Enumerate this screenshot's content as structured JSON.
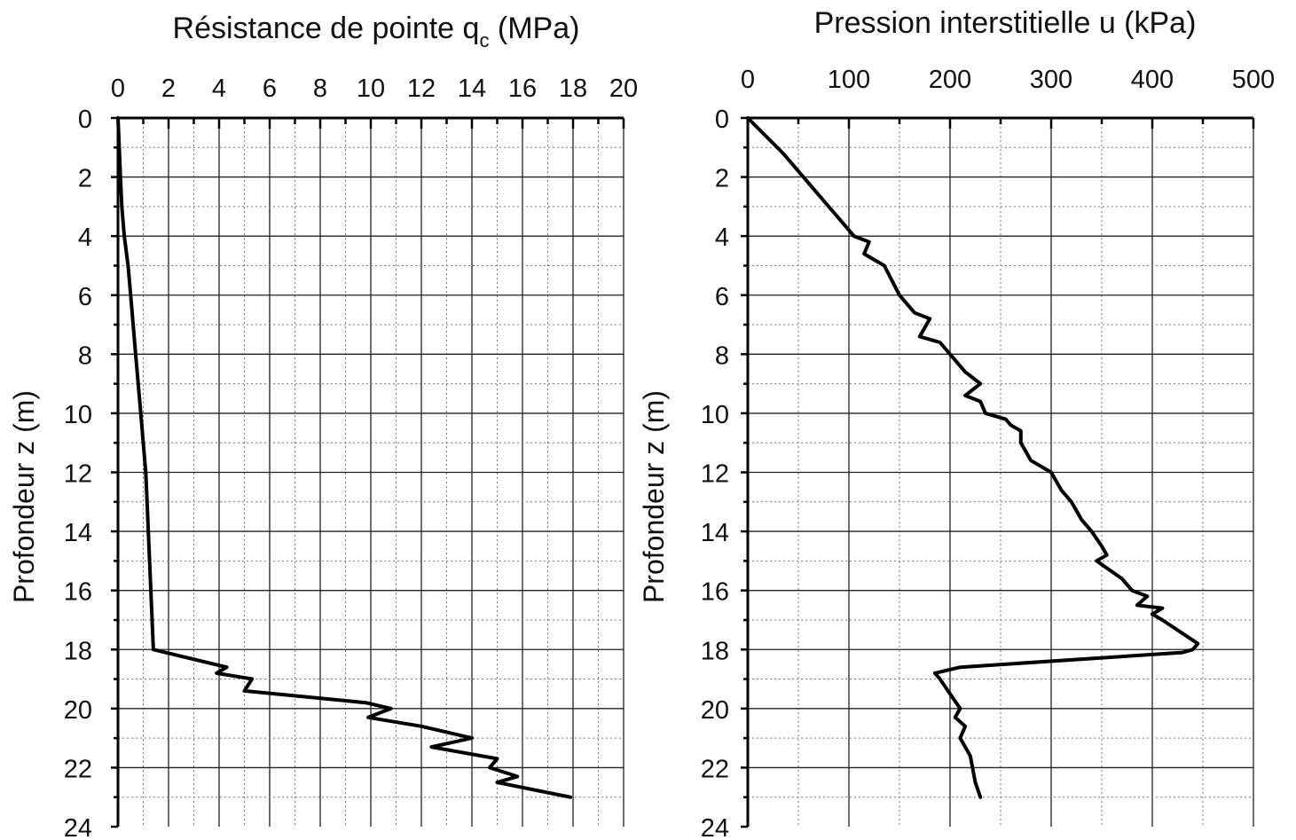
{
  "chart_data": [
    {
      "type": "line",
      "title": "Résistance de pointe q",
      "title_sub": "c",
      "title_unit": " (MPa)",
      "xlabel": "Résistance de pointe q_c (MPa)",
      "ylabel": "Profondeur z (m)",
      "xlim": [
        0,
        20
      ],
      "ylim": [
        0,
        24
      ],
      "y_inverted": true,
      "x_axis_position": "top",
      "grid": true,
      "xticks": [
        0,
        2,
        4,
        6,
        8,
        10,
        12,
        14,
        16,
        18,
        20
      ],
      "yticks": [
        0,
        2,
        4,
        6,
        8,
        10,
        12,
        14,
        16,
        18,
        20,
        22,
        24
      ],
      "xtick_labels": [
        "0",
        "2",
        "4",
        "6",
        "8",
        "10",
        "12",
        "14",
        "16",
        "18",
        "20"
      ],
      "ytick_labels": [
        "0",
        "2",
        "4",
        "6",
        "8",
        "10",
        "12",
        "14",
        "16",
        "18",
        "20",
        "22",
        "24"
      ],
      "series": [
        {
          "x": [
            0,
            0.1,
            0.15,
            0.25,
            0.4,
            0.5,
            0.6,
            0.7,
            0.8,
            0.9,
            1.0,
            1.1,
            1.15,
            1.2,
            1.4,
            4.3,
            3.9,
            5.3,
            5.0,
            9.8,
            10.8,
            9.9,
            12.0,
            14.0,
            12.4,
            15.0,
            14.7,
            15.8,
            15.0,
            17.9
          ],
          "y": [
            0,
            2,
            3,
            4,
            5,
            6,
            7,
            8,
            9,
            10,
            11,
            12,
            13,
            14,
            18,
            18.6,
            18.8,
            19.0,
            19.4,
            19.8,
            20.0,
            20.3,
            20.6,
            21.0,
            21.3,
            21.7,
            22.0,
            22.3,
            22.5,
            23.0
          ]
        }
      ]
    },
    {
      "type": "line",
      "title": "Pression interstitielle u",
      "title_unit": " (kPa)",
      "xlabel": "Pression interstitielle u (kPa)",
      "ylabel": "Profondeur z (m)",
      "xlim": [
        0,
        500
      ],
      "ylim": [
        0,
        24
      ],
      "y_inverted": true,
      "x_axis_position": "top",
      "grid": true,
      "xticks": [
        0,
        100,
        200,
        300,
        400,
        500
      ],
      "yticks": [
        0,
        2,
        4,
        6,
        8,
        10,
        12,
        14,
        16,
        18,
        20,
        22,
        24
      ],
      "xtick_labels": [
        "0",
        "100",
        "200",
        "300",
        "400",
        "500"
      ],
      "ytick_labels": [
        "0",
        "2",
        "4",
        "6",
        "8",
        "10",
        "12",
        "14",
        "16",
        "18",
        "20",
        "22",
        "24"
      ],
      "series": [
        {
          "x": [
            0,
            35,
            45,
            65,
            85,
            95,
            105,
            120,
            115,
            135,
            150,
            165,
            180,
            170,
            190,
            200,
            215,
            230,
            215,
            230,
            235,
            255,
            260,
            270,
            270,
            280,
            300,
            310,
            320,
            330,
            340,
            350,
            355,
            345,
            370,
            380,
            395,
            385,
            410,
            400,
            410,
            445,
            440,
            430,
            210,
            185,
            190,
            200,
            210,
            205,
            215,
            210,
            220,
            225,
            230
          ],
          "y": [
            0,
            1.2,
            1.6,
            2.4,
            3.2,
            3.6,
            4.0,
            4.2,
            4.6,
            5.0,
            6.0,
            6.6,
            6.8,
            7.4,
            7.6,
            8.0,
            8.6,
            9.0,
            9.4,
            9.6,
            10.0,
            10.2,
            10.4,
            10.6,
            11.0,
            11.6,
            12.0,
            12.6,
            13.0,
            13.6,
            14.0,
            14.5,
            14.8,
            15.0,
            15.6,
            16.0,
            16.2,
            16.5,
            16.6,
            16.8,
            17.0,
            17.8,
            18.0,
            18.1,
            18.6,
            18.8,
            19.0,
            19.5,
            20.0,
            20.3,
            20.6,
            21.0,
            21.6,
            22.5,
            23.0
          ]
        }
      ]
    }
  ]
}
